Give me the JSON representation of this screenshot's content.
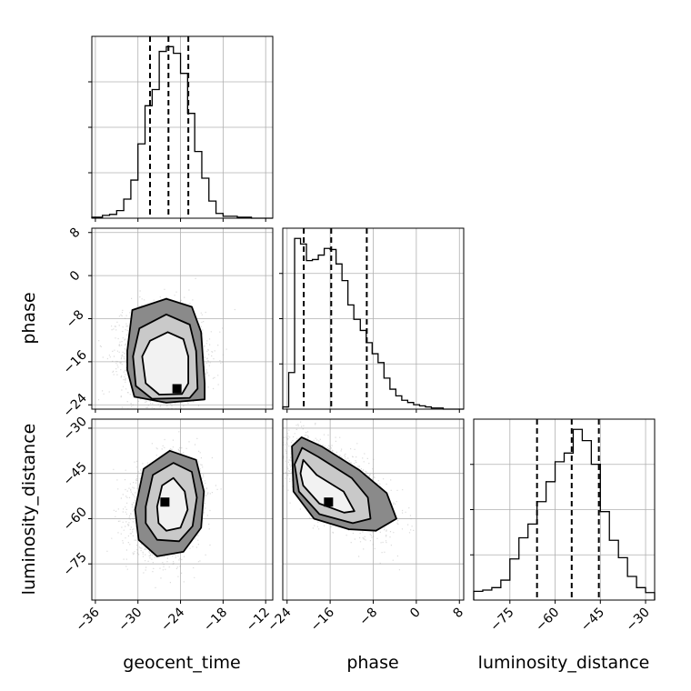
{
  "chart_data": {
    "type": "corner",
    "variables": [
      "geocent_time",
      "phase",
      "luminosity_distance"
    ],
    "axis_labels": {
      "geocent_time": "geocent_time",
      "phase": "phase",
      "luminosity_distance": "luminosity_distance"
    },
    "ranges": {
      "geocent_time": [
        -36.5,
        -11.0
      ],
      "phase": [
        -24.8,
        8.8
      ],
      "luminosity_distance": [
        -87.0,
        -27.0
      ]
    },
    "ticks": {
      "geocent_time": [
        -36,
        -30,
        -24,
        -18,
        -12
      ],
      "phase": [
        -24,
        -16,
        -8,
        0,
        8
      ],
      "luminosity_distance": [
        -75,
        -60,
        -45,
        -30
      ]
    },
    "grid": true,
    "quantiles": {
      "geocent_time": [
        -28.3,
        -25.7,
        -22.9
      ],
      "phase": [
        -20.9,
        -15.8,
        -9.2
      ],
      "luminosity_distance": [
        -66.0,
        -54.5,
        -45.5
      ]
    },
    "histograms": {
      "geocent_time": {
        "edges": [
          -36.5,
          -35.0,
          -34.0,
          -33.0,
          -32.0,
          -31.0,
          -30.0,
          -29.0,
          -28.0,
          -27.0,
          -26.0,
          -25.0,
          -24.0,
          -23.0,
          -22.0,
          -21.0,
          -20.0,
          -19.0,
          -18.0,
          -16.0,
          -14.0,
          -11.0
        ],
        "counts": [
          1,
          3,
          4,
          8,
          20,
          40,
          78,
          118,
          135,
          175,
          180,
          173,
          152,
          110,
          70,
          42,
          18,
          5,
          2,
          1,
          0
        ]
      },
      "phase": {
        "edges": [
          -24.8,
          -23.7,
          -22.6,
          -21.5,
          -20.4,
          -19.3,
          -18.2,
          -17.1,
          -16.0,
          -14.9,
          -13.8,
          -12.7,
          -11.6,
          -10.4,
          -9.3,
          -8.2,
          -7.1,
          -6.0,
          -4.9,
          -3.8,
          -2.7,
          -1.6,
          -0.5,
          0.6,
          1.7,
          2.8,
          3.9,
          5.0,
          8.8
        ],
        "counts": [
          2,
          33,
          154,
          149,
          134,
          135,
          139,
          145,
          144,
          131,
          116,
          94,
          81,
          71,
          60,
          50,
          42,
          28,
          18,
          12,
          8,
          6,
          4,
          3,
          2,
          1,
          1,
          0
        ]
      },
      "luminosity_distance": {
        "edges": [
          -87.0,
          -84.0,
          -81.0,
          -78.0,
          -75.0,
          -72.0,
          -69.0,
          -66.0,
          -63.0,
          -60.0,
          -57.0,
          -54.0,
          -51.0,
          -48.0,
          -45.0,
          -42.0,
          -39.0,
          -36.0,
          -33.0,
          -30.0,
          -27.0
        ],
        "counts": [
          7,
          8,
          10,
          16,
          33,
          50,
          61,
          79,
          95,
          111,
          118,
          137,
          128,
          109,
          71,
          48,
          34,
          19,
          10,
          6
        ]
      }
    },
    "scatter_2d": [
      {
        "x": "geocent_time",
        "y": "phase",
        "peak": [
          -24.5,
          -21.0
        ],
        "contours": [
          [
            [
              -29.4,
              -15.0
            ],
            [
              -28.3,
              -12.1
            ],
            [
              -25.8,
              -10.5
            ],
            [
              -23.6,
              -11.8
            ],
            [
              -22.9,
              -15.0
            ],
            [
              -22.9,
              -20.0
            ],
            [
              -23.8,
              -22.0
            ],
            [
              -27.0,
              -22.1
            ],
            [
              -28.9,
              -20.0
            ],
            [
              -29.4,
              -15.0
            ]
          ],
          [
            [
              -30.7,
              -15.0
            ],
            [
              -29.8,
              -9.8
            ],
            [
              -26.0,
              -7.2
            ],
            [
              -22.7,
              -9.1
            ],
            [
              -21.8,
              -14.0
            ],
            [
              -21.6,
              -21.0
            ],
            [
              -22.7,
              -22.7
            ],
            [
              -28.0,
              -22.9
            ],
            [
              -30.3,
              -20.5
            ],
            [
              -30.7,
              -15.0
            ]
          ],
          [
            [
              -31.5,
              -14.0
            ],
            [
              -30.8,
              -6.4
            ],
            [
              -26.0,
              -4.3
            ],
            [
              -22.4,
              -5.8
            ],
            [
              -21.1,
              -10.5
            ],
            [
              -20.6,
              -20.0
            ],
            [
              -20.6,
              -23.0
            ],
            [
              -26.0,
              -23.6
            ],
            [
              -30.5,
              -22.5
            ],
            [
              -31.5,
              -17.5
            ],
            [
              -31.5,
              -14.0
            ]
          ]
        ]
      },
      {
        "x": "geocent_time",
        "y": "luminosity_distance",
        "peak": [
          -26.2,
          -54.5
        ],
        "contours": [
          [
            [
              -27.3,
              -56.0
            ],
            [
              -26.6,
              -49.0
            ],
            [
              -25.0,
              -46.5
            ],
            [
              -23.4,
              -51.0
            ],
            [
              -23.0,
              -57.0
            ],
            [
              -24.0,
              -63.0
            ],
            [
              -26.0,
              -64.0
            ],
            [
              -27.1,
              -61.5
            ],
            [
              -27.3,
              -56.0
            ]
          ],
          [
            [
              -28.9,
              -56.0
            ],
            [
              -27.9,
              -45.5
            ],
            [
              -25.0,
              -41.5
            ],
            [
              -22.4,
              -44.5
            ],
            [
              -21.7,
              -53.0
            ],
            [
              -22.3,
              -62.5
            ],
            [
              -24.2,
              -67.5
            ],
            [
              -27.3,
              -67.0
            ],
            [
              -28.9,
              -61.5
            ],
            [
              -28.9,
              -56.0
            ]
          ],
          [
            [
              -30.4,
              -57.0
            ],
            [
              -29.2,
              -43.5
            ],
            [
              -25.5,
              -37.5
            ],
            [
              -21.8,
              -40.5
            ],
            [
              -20.7,
              -51.0
            ],
            [
              -21.1,
              -63.0
            ],
            [
              -23.6,
              -71.0
            ],
            [
              -27.3,
              -72.5
            ],
            [
              -29.9,
              -67.0
            ],
            [
              -30.4,
              -57.0
            ]
          ]
        ]
      },
      {
        "x": "phase",
        "y": "luminosity_distance",
        "peak": [
          -16.3,
          -54.5
        ],
        "contours": [
          [
            [
              -21.5,
              -45.0
            ],
            [
              -21.0,
              -40.5
            ],
            [
              -18.5,
              -45.5
            ],
            [
              -13.5,
              -51.0
            ],
            [
              -11.5,
              -57.5
            ],
            [
              -13.4,
              -58.0
            ],
            [
              -18.0,
              -55.0
            ],
            [
              -21.0,
              -49.0
            ],
            [
              -21.5,
              -45.0
            ]
          ],
          [
            [
              -22.6,
              -42.0
            ],
            [
              -21.2,
              -36.5
            ],
            [
              -18.2,
              -39.5
            ],
            [
              -12.0,
              -46.5
            ],
            [
              -9.0,
              -53.0
            ],
            [
              -8.5,
              -60.0
            ],
            [
              -11.8,
              -61.5
            ],
            [
              -18.0,
              -58.5
            ],
            [
              -21.8,
              -51.0
            ],
            [
              -22.6,
              -42.0
            ]
          ],
          [
            [
              -23.1,
              -36.0
            ],
            [
              -21.3,
              -33.0
            ],
            [
              -17.6,
              -36.0
            ],
            [
              -10.5,
              -44.0
            ],
            [
              -5.5,
              -51.5
            ],
            [
              -3.7,
              -60.0
            ],
            [
              -7.5,
              -64.0
            ],
            [
              -12.5,
              -63.5
            ],
            [
              -19.0,
              -60.0
            ],
            [
              -22.8,
              -51.0
            ],
            [
              -23.1,
              -36.0
            ]
          ]
        ]
      }
    ]
  }
}
